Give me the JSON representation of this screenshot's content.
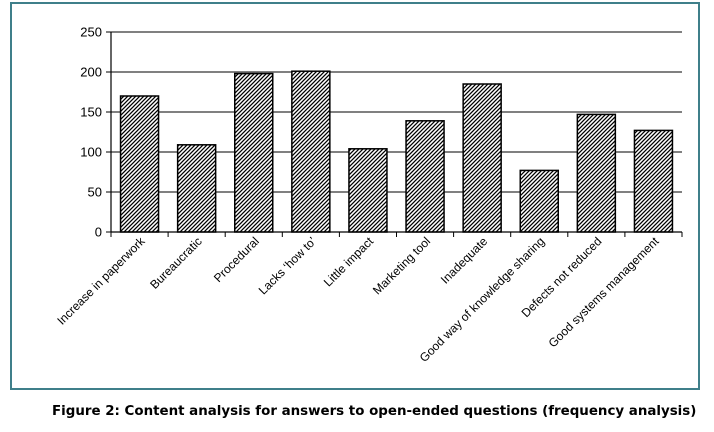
{
  "caption": "Figure 2: Content analysis for answers to open-ended questions (frequency analysis)",
  "chart_data": {
    "type": "bar",
    "categories": [
      "Increase in paperwork",
      "Bureaucratic",
      "Procedural",
      "Lacks ‘how to’",
      "Little impact",
      "Marketing tool",
      "Inadequate",
      "Good way of knowledge sharing",
      "Defects not reduced",
      "Good systems management"
    ],
    "values": [
      170,
      109,
      198,
      201,
      104,
      139,
      185,
      77,
      147,
      127
    ],
    "title": "",
    "xlabel": "",
    "ylabel": "",
    "ylim": [
      0,
      250
    ],
    "yticks": [
      0,
      50,
      100,
      150,
      200,
      250
    ],
    "grid": true,
    "legend": "none",
    "bar_fill": "diagonal-hatch",
    "colors": {
      "frame": "#3f7f8a",
      "bar_outline": "#000000",
      "grid": "#000000"
    }
  }
}
